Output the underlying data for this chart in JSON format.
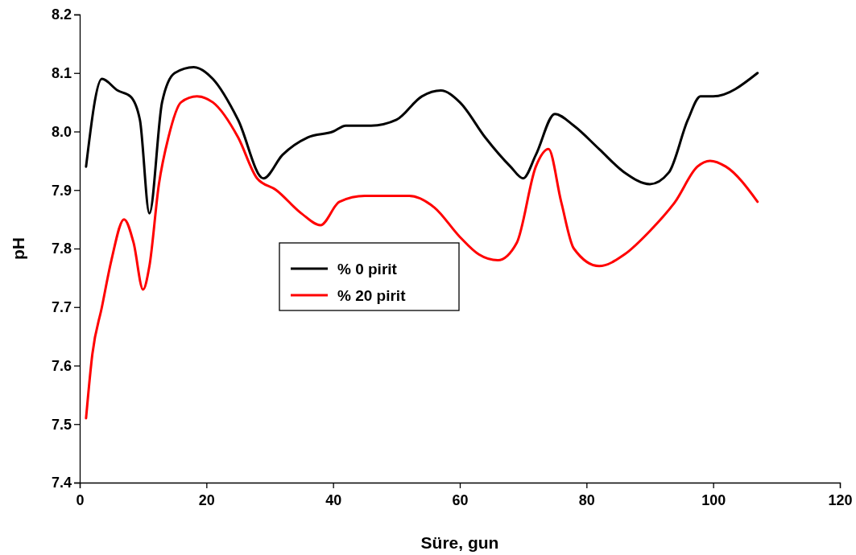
{
  "chart_data": {
    "type": "line",
    "xlabel": "Süre, gun",
    "ylabel": "pH",
    "xlim": [
      0,
      120
    ],
    "xticks": [
      0,
      20,
      40,
      60,
      80,
      100,
      120
    ],
    "ylim": [
      7.4,
      8.2
    ],
    "yticks": [
      {
        "value": 7.4,
        "label": "7.4"
      },
      {
        "value": 7.5,
        "label": "7.5"
      },
      {
        "value": 7.6,
        "label": "7.6"
      },
      {
        "value": 7.7,
        "label": "7.7"
      },
      {
        "value": 7.8,
        "label": "7.8"
      },
      {
        "value": 7.9,
        "label": "7.9"
      },
      {
        "value": 8.0,
        "label": "8.0"
      },
      {
        "value": 8.1,
        "label": "8.1"
      },
      {
        "value": 8.2,
        "label": "8.2"
      }
    ],
    "grid": false,
    "legend": "center",
    "marker": "none",
    "line_style": "solid",
    "series": [
      {
        "name": "% 0 pirit",
        "color": "#000000",
        "x": [
          1,
          3.5,
          6,
          8,
          9.5,
          11,
          13,
          15,
          18,
          21,
          25,
          29,
          32,
          36,
          40,
          42,
          46,
          50,
          54,
          57,
          60,
          64,
          68,
          70,
          72,
          75,
          78,
          82,
          86,
          90,
          93,
          96,
          98,
          100,
          107
        ],
        "values": [
          7.94,
          8.09,
          8.07,
          8.06,
          8.02,
          7.86,
          8.05,
          8.1,
          8.11,
          8.09,
          8.02,
          7.92,
          7.96,
          7.99,
          8.0,
          8.01,
          8.01,
          8.02,
          8.06,
          8.07,
          8.05,
          7.99,
          7.94,
          7.92,
          7.96,
          8.03,
          8.01,
          7.97,
          7.93,
          7.91,
          7.93,
          8.02,
          8.06,
          8.06,
          8.1
        ]
      },
      {
        "name": "% 20 pirit",
        "color": "#ff0000",
        "x": [
          1,
          2,
          3.5,
          5,
          7,
          8.5,
          10,
          11,
          12.5,
          14,
          16,
          18.5,
          21,
          25,
          28,
          31,
          35,
          38,
          41,
          45,
          52,
          56,
          60,
          63,
          66,
          69,
          72,
          74,
          76,
          78,
          82,
          86,
          90,
          94,
          97.5,
          99.5,
          102,
          107
        ],
        "values": [
          7.51,
          7.62,
          7.7,
          7.78,
          7.85,
          7.81,
          7.73,
          7.77,
          7.91,
          7.99,
          8.05,
          8.06,
          8.05,
          7.99,
          7.92,
          7.9,
          7.86,
          7.84,
          7.88,
          7.89,
          7.89,
          7.87,
          7.82,
          7.79,
          7.78,
          7.81,
          7.94,
          7.97,
          7.88,
          7.8,
          7.77,
          7.79,
          7.83,
          7.88,
          7.94,
          7.95,
          7.94,
          7.88
        ]
      }
    ]
  }
}
